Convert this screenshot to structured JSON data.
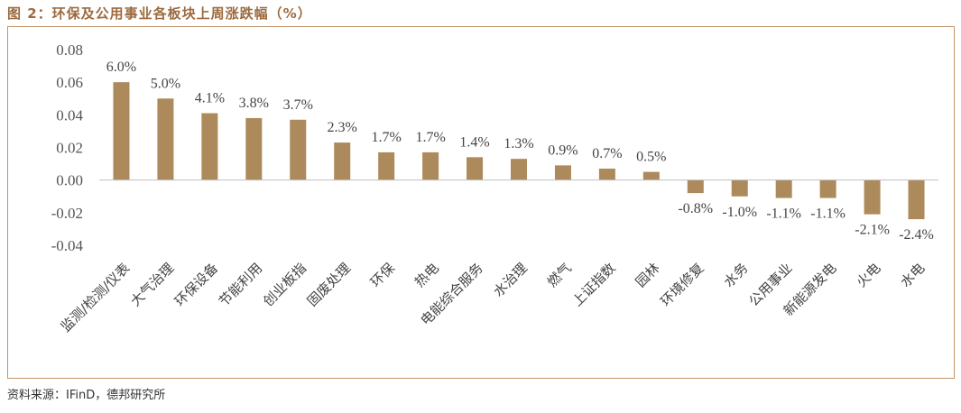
{
  "header": {
    "title": "图 2：环保及公用事业各板块上周涨跌幅（%）"
  },
  "footer": {
    "source": "资料来源：IFinD，德邦研究所"
  },
  "colors": {
    "bar": "#ad8a5b",
    "accent": "#9c6b3f"
  },
  "chart_data": {
    "type": "bar",
    "title": "",
    "xlabel": "",
    "ylabel": "",
    "ylim": [
      -0.04,
      0.08
    ],
    "yticks": [
      "0.08",
      "0.06",
      "0.04",
      "0.02",
      "0.00",
      "-0.02",
      "-0.04"
    ],
    "grid": false,
    "legend": "none",
    "categories": [
      "监测/检测/仪表",
      "大气治理",
      "环保设备",
      "节能利用",
      "创业板指",
      "固废处理",
      "环保",
      "热电",
      "电能综合服务",
      "水治理",
      "燃气",
      "上证指数",
      "园林",
      "环境修复",
      "水务",
      "公用事业",
      "新能源发电",
      "火电",
      "水电"
    ],
    "values": [
      0.06,
      0.05,
      0.041,
      0.038,
      0.037,
      0.023,
      0.017,
      0.017,
      0.014,
      0.013,
      0.009,
      0.007,
      0.005,
      -0.008,
      -0.01,
      -0.011,
      -0.011,
      -0.021,
      -0.024
    ],
    "labels": [
      "6.0%",
      "5.0%",
      "4.1%",
      "3.8%",
      "3.7%",
      "2.3%",
      "1.7%",
      "1.7%",
      "1.4%",
      "1.3%",
      "0.9%",
      "0.7%",
      "0.5%",
      "-0.8%",
      "-1.0%",
      "-1.1%",
      "-1.1%",
      "-2.1%",
      "-2.4%"
    ]
  }
}
